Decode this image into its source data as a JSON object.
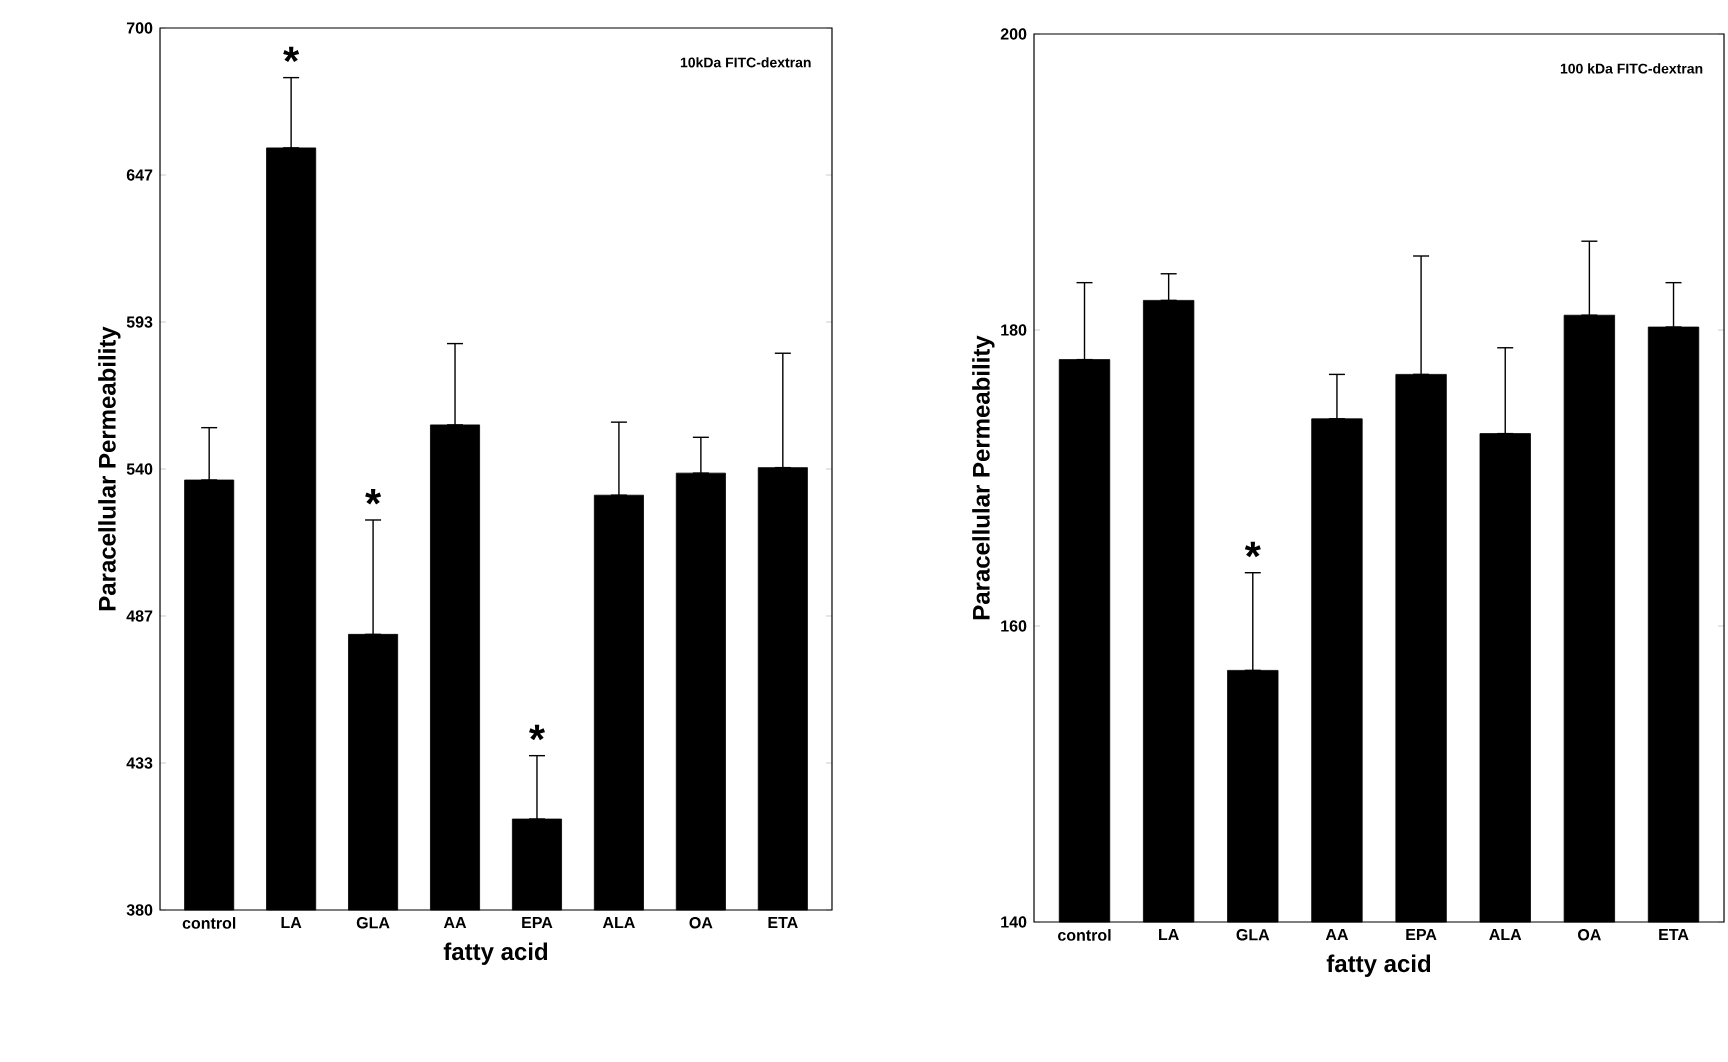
{
  "chart_data": [
    {
      "type": "bar",
      "xlabel": "fatty acid",
      "ylabel": "Paracellular Permeability",
      "categories": [
        "control",
        "LA",
        "GLA",
        "AA",
        "EPA",
        "ALA",
        "OA",
        "ETA"
      ],
      "values": [
        536,
        656.5,
        480,
        556,
        413,
        530.5,
        538.5,
        540.5
      ],
      "errors": [
        [
          536,
          555
        ],
        [
          656.5,
          682
        ],
        [
          480,
          521.5
        ],
        [
          556,
          585.5
        ],
        [
          413,
          436
        ],
        [
          530.5,
          557
        ],
        [
          538.5,
          551.5
        ],
        [
          540.5,
          582
        ]
      ],
      "color": "#000000",
      "ylim": [
        380,
        700
      ],
      "yticks": [
        380,
        {
          "value": 433.33,
          "label": "433"
        },
        {
          "value": 486.67,
          "label": "487"
        },
        540,
        {
          "value": 593.33,
          "label": "593"
        },
        {
          "value": 646.67,
          "label": "647"
        },
        700
      ],
      "annotations": [
        "10kDa FITC-dextran",
        {
          "text": "*",
          "x": "LA",
          "y": 682
        },
        {
          "text": "*",
          "x": "GLA",
          "y": 521.5
        },
        {
          "text": "*",
          "x": "EPA",
          "y": 436
        }
      ]
    },
    {
      "type": "bar",
      "xlabel": "fatty acid",
      "ylabel": "Paracellular Permeability",
      "categories": [
        "control",
        "LA",
        "GLA",
        "AA",
        "EPA",
        "ALA",
        "OA",
        "ETA"
      ],
      "values": [
        178,
        182,
        157,
        174,
        177,
        173,
        181,
        180.2
      ],
      "errors": [
        [
          178,
          183.2
        ],
        [
          182,
          183.8
        ],
        [
          157,
          163.6
        ],
        [
          174,
          177
        ],
        [
          177,
          185
        ],
        [
          173,
          178.8
        ],
        [
          181,
          186
        ],
        [
          180.2,
          183.2
        ]
      ],
      "color": "#000000",
      "ylim": [
        140,
        200
      ],
      "yticks": [
        140,
        160,
        180,
        200
      ],
      "annotations": [
        "100 kDa FITC-dextran",
        {
          "text": "*",
          "x": "GLA",
          "y": 163.6
        }
      ]
    }
  ]
}
